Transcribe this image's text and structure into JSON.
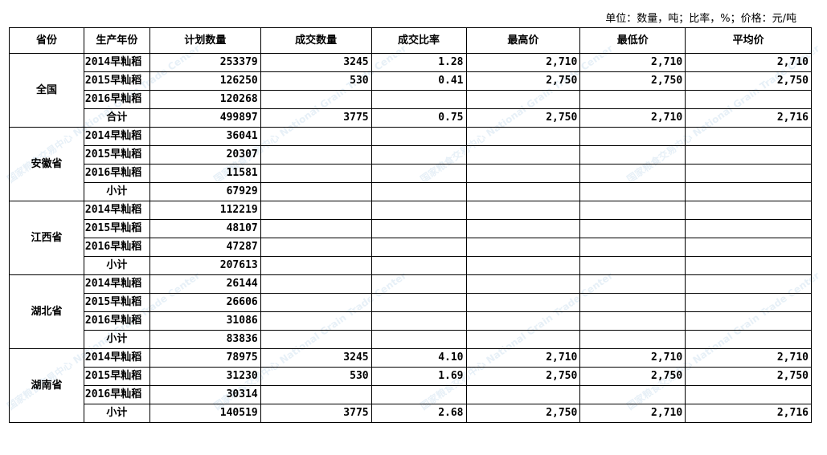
{
  "unit_note": "单位：数量，吨；比率，%；价格：元/吨",
  "columns": [
    "省份",
    "生产年份",
    "计划数量",
    "成交数量",
    "成交比率",
    "最高价",
    "最低价",
    "平均价"
  ],
  "groups": [
    {
      "province": "全国",
      "rows": [
        [
          "2014早籼稻",
          "253379",
          "3245",
          "1.28",
          "2,710",
          "2,710",
          "2,710"
        ],
        [
          "2015早籼稻",
          "126250",
          "530",
          "0.41",
          "2,750",
          "2,750",
          "2,750"
        ],
        [
          "2016早籼稻",
          "120268",
          "",
          "",
          "",
          "",
          ""
        ],
        [
          "合计",
          "499897",
          "3775",
          "0.75",
          "2,750",
          "2,710",
          "2,716"
        ]
      ]
    },
    {
      "province": "安徽省",
      "rows": [
        [
          "2014早籼稻",
          "36041",
          "",
          "",
          "",
          "",
          ""
        ],
        [
          "2015早籼稻",
          "20307",
          "",
          "",
          "",
          "",
          ""
        ],
        [
          "2016早籼稻",
          "11581",
          "",
          "",
          "",
          "",
          ""
        ],
        [
          "小计",
          "67929",
          "",
          "",
          "",
          "",
          ""
        ]
      ]
    },
    {
      "province": "江西省",
      "rows": [
        [
          "2014早籼稻",
          "112219",
          "",
          "",
          "",
          "",
          ""
        ],
        [
          "2015早籼稻",
          "48107",
          "",
          "",
          "",
          "",
          ""
        ],
        [
          "2016早籼稻",
          "47287",
          "",
          "",
          "",
          "",
          ""
        ],
        [
          "小计",
          "207613",
          "",
          "",
          "",
          "",
          ""
        ]
      ]
    },
    {
      "province": "湖北省",
      "rows": [
        [
          "2014早籼稻",
          "26144",
          "",
          "",
          "",
          "",
          ""
        ],
        [
          "2015早籼稻",
          "26606",
          "",
          "",
          "",
          "",
          ""
        ],
        [
          "2016早籼稻",
          "31086",
          "",
          "",
          "",
          "",
          ""
        ],
        [
          "小计",
          "83836",
          "",
          "",
          "",
          "",
          ""
        ]
      ]
    },
    {
      "province": "湖南省",
      "rows": [
        [
          "2014早籼稻",
          "78975",
          "3245",
          "4.10",
          "2,710",
          "2,710",
          "2,710"
        ],
        [
          "2015早籼稻",
          "31230",
          "530",
          "1.69",
          "2,750",
          "2,750",
          "2,750"
        ],
        [
          "2016早籼稻",
          "30314",
          "",
          "",
          "",
          "",
          ""
        ],
        [
          "小计",
          "140519",
          "3775",
          "2.68",
          "2,750",
          "2,710",
          "2,716"
        ]
      ]
    }
  ],
  "watermark": "国家粮食交易中心 National Grain Trade Center"
}
